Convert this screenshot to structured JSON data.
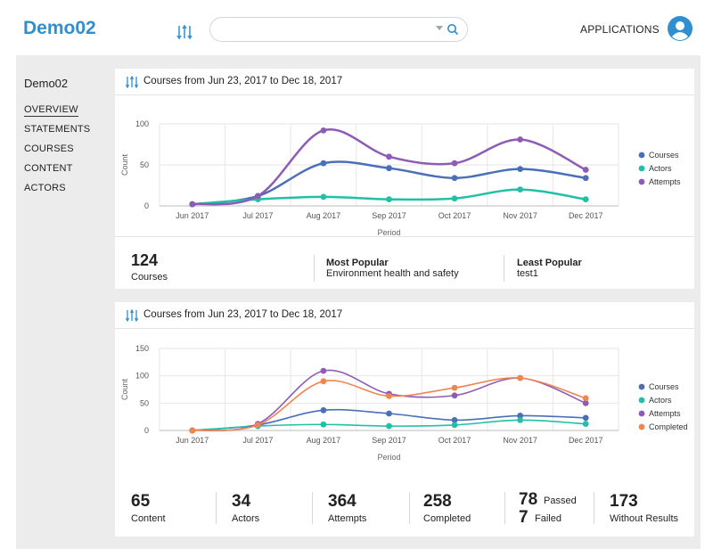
{
  "app": {
    "brand": "Demo02",
    "applications_label": "APPLICATIONS"
  },
  "search": {
    "value": "",
    "placeholder": ""
  },
  "sidebar": {
    "title": "Demo02",
    "items": [
      {
        "label": "OVERVIEW",
        "active": true
      },
      {
        "label": "STATEMENTS"
      },
      {
        "label": "COURSES"
      },
      {
        "label": "CONTENT"
      },
      {
        "label": "ACTORS"
      }
    ]
  },
  "card1": {
    "title": "Courses from Jun 23, 2017 to Dec 18, 2017",
    "stats": {
      "courses_value": "124",
      "courses_label": "Courses",
      "most_popular_label": "Most Popular",
      "most_popular_value": "Environment health and safety",
      "least_popular_label": "Least Popular",
      "least_popular_value": "test1"
    }
  },
  "card2": {
    "title": "Courses from Jun 23, 2017 to Dec 18, 2017"
  },
  "bottom_stats": {
    "content_value": "65",
    "content_label": "Content",
    "actors_value": "34",
    "actors_label": "Actors",
    "attempts_value": "364",
    "attempts_label": "Attempts",
    "completed_value": "258",
    "completed_label": "Completed",
    "passed_value": "78",
    "passed_label": "Passed",
    "failed_value": "7",
    "failed_label": "Failed",
    "without_value": "173",
    "without_label": "Without Results"
  },
  "colors": {
    "brand": "#2f8fcf",
    "courses": "#4a6fb8",
    "actors": "#21c0a6",
    "attempts": "#8e5bb5",
    "completed": "#f08550"
  },
  "icons": [
    "filter-icon",
    "search-icon",
    "user-avatar-icon"
  ],
  "chart_data": [
    {
      "type": "line",
      "categories": [
        "Jun 2017",
        "Jul 2017",
        "Aug 2017",
        "Sep 2017",
        "Oct 2017",
        "Nov 2017",
        "Dec 2017"
      ],
      "xlabel": "Period",
      "ylabel": "Count",
      "ylim": [
        0,
        100
      ],
      "yticks": [
        0,
        50,
        100
      ],
      "grid": true,
      "legend_position": "right",
      "series": [
        {
          "name": "Courses",
          "color": "#4a6fb8",
          "values": [
            2,
            12,
            52,
            46,
            34,
            45,
            34
          ]
        },
        {
          "name": "Actors",
          "color": "#21c0a6",
          "values": [
            2,
            8,
            11,
            8,
            9,
            20,
            8
          ]
        },
        {
          "name": "Attempts",
          "color": "#8e5bb5",
          "values": [
            2,
            12,
            92,
            60,
            52,
            81,
            44
          ]
        }
      ]
    },
    {
      "type": "line",
      "categories": [
        "Jun 2017",
        "Jul 2017",
        "Aug 2017",
        "Sep 2017",
        "Oct 2017",
        "Nov 2017",
        "Dec 2017"
      ],
      "xlabel": "Period",
      "ylabel": "Count",
      "ylim": [
        0,
        150
      ],
      "yticks": [
        0,
        50,
        100,
        150
      ],
      "grid": true,
      "legend_position": "right",
      "series": [
        {
          "name": "Courses",
          "color": "#4a6fb8",
          "values": [
            0,
            10,
            37,
            31,
            19,
            27,
            23
          ]
        },
        {
          "name": "Actors",
          "color": "#21c0a6",
          "values": [
            0,
            8,
            11,
            8,
            10,
            19,
            12
          ]
        },
        {
          "name": "Attempts",
          "color": "#8e5bb5",
          "values": [
            0,
            12,
            109,
            67,
            64,
            96,
            50
          ]
        },
        {
          "name": "Completed",
          "color": "#f08550",
          "values": [
            0,
            10,
            90,
            63,
            78,
            96,
            59
          ]
        }
      ]
    }
  ]
}
